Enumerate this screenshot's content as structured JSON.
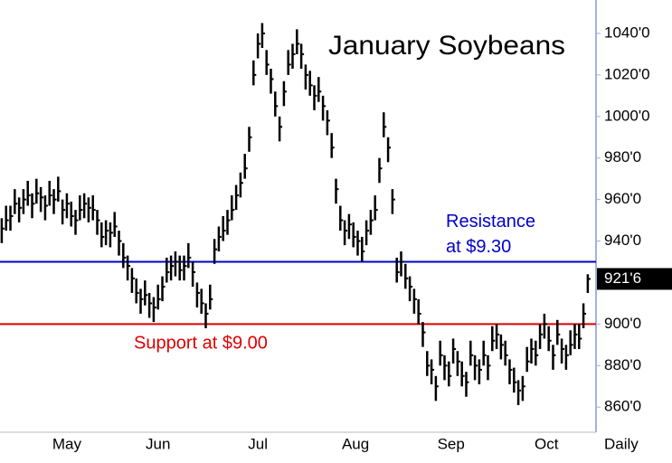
{
  "chart_data": {
    "type": "ohlc",
    "title": "January Soybeans",
    "x_label": "Daily",
    "color": "#000000",
    "high": [
      951,
      957,
      957,
      965,
      961,
      965,
      969,
      963,
      970,
      966,
      962,
      969,
      965,
      971,
      960,
      963,
      959,
      955,
      962,
      963,
      961,
      962,
      955,
      949,
      950,
      949,
      954,
      945,
      939,
      933,
      927,
      922,
      917,
      921,
      915,
      913,
      919,
      923,
      932,
      933,
      935,
      933,
      933,
      939,
      930,
      920,
      917,
      910,
      919,
      941,
      947,
      952,
      955,
      962,
      967,
      973,
      982,
      995,
      1027,
      1040,
      1045,
      1032,
      1023,
      1012,
      1000,
      1017,
      1032,
      1035,
      1042,
      1035,
      1025,
      1022,
      1015,
      1019,
      1010,
      1003,
      992,
      970,
      957,
      950,
      953,
      949,
      945,
      942,
      950,
      955,
      962,
      980,
      1002,
      990,
      965,
      932,
      935,
      929,
      923,
      917,
      912,
      901,
      887,
      883,
      875,
      892,
      885,
      882,
      893,
      887,
      882,
      877,
      892,
      885,
      883,
      892,
      885,
      899,
      900,
      895,
      892,
      883,
      879,
      873,
      875,
      889,
      893,
      892,
      900,
      905,
      899,
      890,
      902,
      893,
      890,
      897,
      900,
      900,
      910,
      924
    ],
    "low": [
      939,
      945,
      945,
      953,
      949,
      953,
      957,
      951,
      958,
      954,
      950,
      957,
      953,
      959,
      948,
      951,
      947,
      943,
      950,
      951,
      949,
      950,
      943,
      937,
      938,
      937,
      942,
      933,
      927,
      921,
      915,
      910,
      905,
      909,
      903,
      901,
      907,
      911,
      920,
      921,
      923,
      921,
      921,
      927,
      918,
      908,
      905,
      898,
      907,
      929,
      935,
      940,
      943,
      950,
      955,
      961,
      970,
      983,
      1015,
      1028,
      1033,
      1020,
      1011,
      1000,
      988,
      1005,
      1020,
      1023,
      1030,
      1023,
      1013,
      1010,
      1003,
      1007,
      998,
      991,
      980,
      958,
      945,
      938,
      941,
      937,
      933,
      930,
      938,
      943,
      950,
      968,
      990,
      978,
      953,
      920,
      923,
      917,
      911,
      905,
      900,
      889,
      875,
      871,
      863,
      880,
      873,
      870,
      881,
      875,
      870,
      865,
      880,
      873,
      871,
      880,
      873,
      887,
      888,
      883,
      880,
      871,
      867,
      861,
      863,
      877,
      881,
      880,
      888,
      893,
      887,
      878,
      890,
      881,
      878,
      885,
      888,
      888,
      898,
      915
    ],
    "close": [
      946,
      950,
      952,
      958,
      956,
      960,
      962,
      958,
      963,
      961,
      957,
      962,
      960,
      964,
      955,
      958,
      952,
      950,
      955,
      958,
      956,
      955,
      950,
      942,
      945,
      944,
      947,
      940,
      932,
      928,
      922,
      915,
      912,
      914,
      910,
      908,
      912,
      918,
      925,
      928,
      930,
      926,
      928,
      932,
      925,
      915,
      910,
      905,
      912,
      936,
      942,
      945,
      950,
      955,
      962,
      968,
      975,
      990,
      1020,
      1035,
      1040,
      1025,
      1018,
      1005,
      995,
      1012,
      1025,
      1030,
      1035,
      1030,
      1020,
      1015,
      1010,
      1012,
      1005,
      998,
      985,
      965,
      950,
      945,
      948,
      942,
      940,
      935,
      945,
      950,
      955,
      975,
      995,
      985,
      960,
      925,
      930,
      922,
      918,
      912,
      905,
      896,
      880,
      878,
      870,
      885,
      880,
      875,
      888,
      882,
      875,
      872,
      885,
      880,
      878,
      885,
      880,
      892,
      895,
      890,
      885,
      878,
      872,
      868,
      870,
      882,
      888,
      885,
      895,
      900,
      892,
      885,
      895,
      888,
      885,
      890,
      895,
      893,
      905,
      921.75
    ],
    "xlim": [
      -0.4,
      136.9
    ],
    "xticks": [
      {
        "value": 15,
        "label": "May"
      },
      {
        "value": 36,
        "label": "Jun"
      },
      {
        "value": 59,
        "label": "Jul"
      },
      {
        "value": 81.5,
        "label": "Aug"
      },
      {
        "value": 103.5,
        "label": "Sep"
      },
      {
        "value": 125.5,
        "label": "Oct"
      }
    ],
    "ylim": [
      847.9,
      1056.1
    ],
    "yticks": [
      {
        "value": 860,
        "label": "860'0"
      },
      {
        "value": 880,
        "label": "880'0"
      },
      {
        "value": 900,
        "label": "900'0"
      },
      {
        "value": 940,
        "label": "940'0"
      },
      {
        "value": 960,
        "label": "960'0"
      },
      {
        "value": 980,
        "label": "980'0"
      },
      {
        "value": 1000,
        "label": "1000'0"
      },
      {
        "value": 1020,
        "label": "1020'0"
      },
      {
        "value": 1040,
        "label": "1040'0"
      }
    ],
    "last_price": {
      "value": 921.75,
      "label": "921'6"
    },
    "levels": [
      {
        "value": 930,
        "color": "#0000cc",
        "label": [
          "Resistance",
          "at $9.30"
        ]
      },
      {
        "value": 900,
        "color": "#e00000",
        "label": [
          "Support at $9.00"
        ]
      }
    ]
  }
}
